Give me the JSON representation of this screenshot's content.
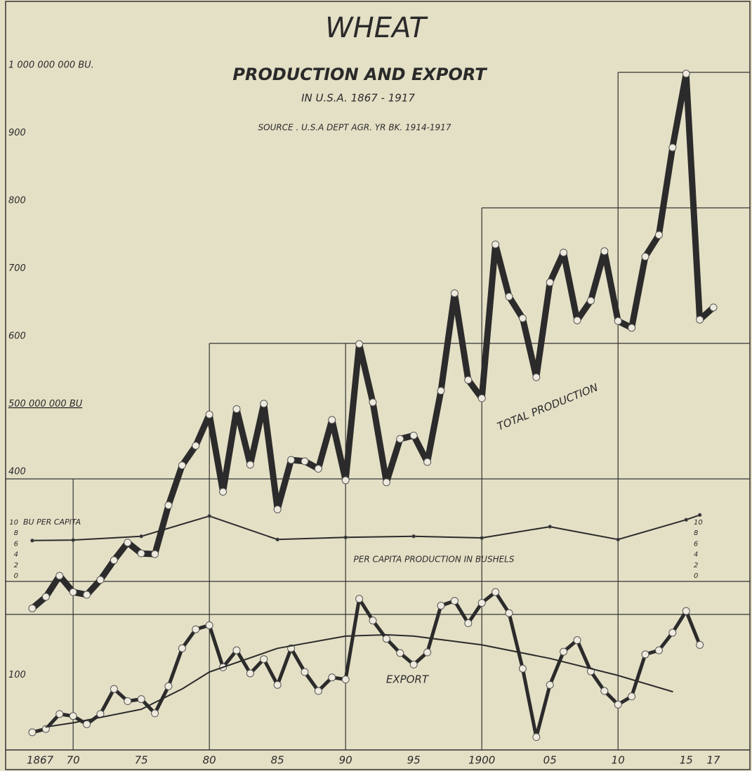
{
  "chart_data": {
    "type": "line",
    "title": "WHEAT",
    "subtitle": "PRODUCTION AND EXPORT",
    "subtitle2": "IN U.S.A. 1867 - 1917",
    "source": "SOURCE . U.S.A DEPT AGR. YR BK. 1914-1917",
    "annotations": {
      "production": "TOTAL PRODUCTION",
      "export": "EXPORT",
      "per_capita": "PER CAPITA PRODUCTION IN BUSHELS",
      "per_capita_unit": "BU PER CAPITA"
    },
    "x": [
      1867,
      1868,
      1869,
      1870,
      1871,
      1872,
      1873,
      1874,
      1875,
      1876,
      1877,
      1878,
      1879,
      1880,
      1881,
      1882,
      1883,
      1884,
      1885,
      1886,
      1887,
      1888,
      1889,
      1890,
      1891,
      1892,
      1893,
      1894,
      1895,
      1896,
      1897,
      1898,
      1899,
      1900,
      1901,
      1902,
      1903,
      1904,
      1905,
      1906,
      1907,
      1908,
      1909,
      1910,
      1911,
      1912,
      1913,
      1914,
      1915,
      1916,
      1917
    ],
    "series": [
      {
        "name": "TOTAL PRODUCTION",
        "color": "#2b2b2b",
        "values": [
          209,
          226,
          257,
          233,
          229,
          251,
          280,
          306,
          290,
          289,
          361,
          420,
          449,
          495,
          381,
          503,
          421,
          511,
          355,
          428,
          426,
          415,
          487,
          398,
          599,
          513,
          395,
          459,
          464,
          425,
          530,
          674,
          546,
          519,
          746,
          669,
          637,
          550,
          690,
          734,
          634,
          663,
          736,
          633,
          623,
          728,
          760,
          889,
          998,
          635,
          653
        ]
      },
      {
        "name": "EXPORT",
        "color": "#2b2b2b",
        "values": [
          26,
          31,
          53,
          50,
          38,
          53,
          90,
          72,
          75,
          54,
          94,
          150,
          178,
          184,
          122,
          147,
          113,
          134,
          96,
          150,
          115,
          87,
          107,
          104,
          223,
          191,
          164,
          143,
          126,
          144,
          213,
          220,
          187,
          217,
          233,
          202,
          120,
          19,
          96,
          145,
          162,
          116,
          87,
          67,
          79,
          141,
          147,
          173,
          205,
          155,
          null
        ]
      },
      {
        "color": "#2b2b2b",
        "x": [
          1868,
          1870,
          1875,
          1878,
          1880,
          1885,
          1890,
          1893,
          1895,
          1900,
          1905,
          1910,
          1914
        ],
        "values": [
          34,
          40,
          60,
          90,
          115,
          150,
          168,
          170,
          168,
          155,
          135,
          110,
          86
        ]
      },
      {
        "name": "PER CAPITA PRODUCTION IN BUSHELS",
        "color": "#2b2b2b",
        "axis": "y2",
        "x": [
          1867,
          1870,
          1875,
          1880,
          1885,
          1890,
          1895,
          1900,
          1905,
          1910,
          1915,
          1916
        ],
        "values": [
          6.6,
          6.7,
          7.4,
          11.2,
          6.8,
          7.2,
          7.4,
          7.1,
          9.2,
          6.8,
          10.5,
          11.4
        ]
      }
    ],
    "xlim": [
      1865.25,
      1918.75
    ],
    "xticks": [
      {
        "value": 1867,
        "label": "1867"
      },
      {
        "value": 1870,
        "label": "70"
      },
      {
        "value": 1875,
        "label": "75"
      },
      {
        "value": 1880,
        "label": "80"
      },
      {
        "value": 1885,
        "label": "85"
      },
      {
        "value": 1890,
        "label": "90"
      },
      {
        "value": 1895,
        "label": "95"
      },
      {
        "value": 1900,
        "label": "1900"
      },
      {
        "value": 1905,
        "label": "05"
      },
      {
        "value": 1910,
        "label": "10"
      },
      {
        "value": 1915,
        "label": "15"
      },
      {
        "value": 1917,
        "label": "17"
      }
    ],
    "ylim": [
      0,
      1000
    ],
    "yticks": [
      {
        "value": 1000,
        "label": "1 000 000 000 BU."
      },
      900,
      800,
      700,
      600,
      {
        "value": 500,
        "label": "500 000 000 BU"
      },
      400,
      100
    ],
    "y2lim": [
      0,
      10
    ],
    "y2ticks": [
      0,
      2,
      4,
      6,
      8,
      10
    ],
    "reference_lines": [
      {
        "x": 1867,
        "y": 400
      },
      {
        "x": 1880,
        "y": 600
      },
      {
        "x": 1900,
        "y": 800
      },
      {
        "x": 1910,
        "y": 1000
      }
    ],
    "grid": false
  }
}
